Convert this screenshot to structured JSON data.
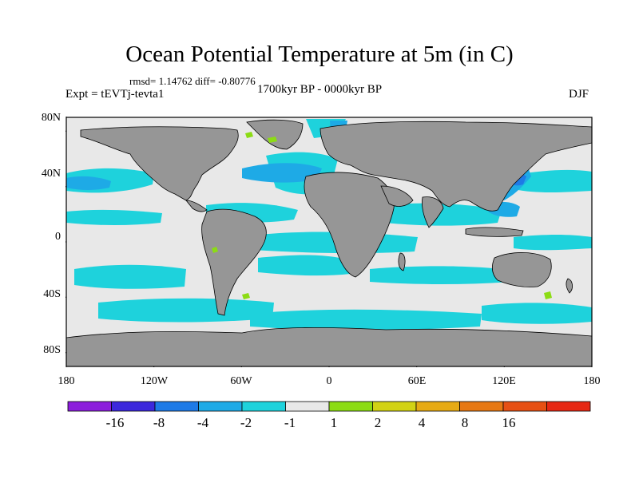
{
  "title": "Ocean Potential Temperature at 5m (in C)",
  "stats": "rmsd= 1.14762 diff= -0.80776",
  "experiment": "Expt = tEVTj-tevta1",
  "period": "1700kyr BP - 0000kyr BP",
  "season": "DJF",
  "colors": {
    "ocean_background": "#e8e8e8",
    "land": "#969696",
    "minus1_to_minus2": "#1ed2dc",
    "minus2_to_minus4": "#1eaae6",
    "minus4_to_minus8": "#1e7ae6",
    "plus1_to_plus2": "#8cdc14"
  },
  "axes": {
    "lat_labels": [
      "80N",
      "40N",
      "0",
      "40S",
      "80S"
    ],
    "lon_labels": [
      "180",
      "120W",
      "60W",
      "0",
      "60E",
      "120E",
      "180"
    ]
  },
  "colorbar": {
    "colors": [
      "#8c1edc",
      "#3c28dc",
      "#1e7ae6",
      "#1eaae6",
      "#1ed2dc",
      "#e8e8e8",
      "#8cdc14",
      "#d2d214",
      "#e6aa14",
      "#e67814",
      "#e65014",
      "#e62814"
    ],
    "labels": [
      "-16",
      "-8",
      "-4",
      "-2",
      "-1",
      "1",
      "2",
      "4",
      "8",
      "16"
    ]
  }
}
